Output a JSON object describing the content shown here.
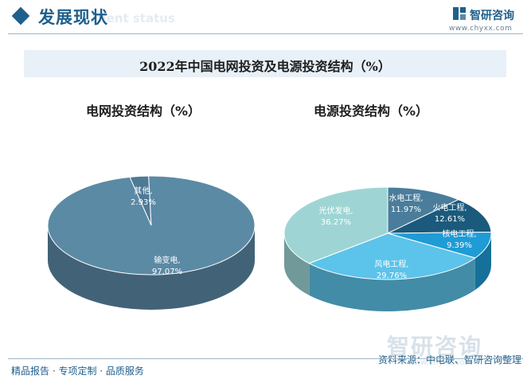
{
  "header": {
    "title": "发展现状",
    "ghost": "ment status",
    "brand": "智研咨询",
    "site": "www.chyxx.com"
  },
  "main_title": "2022年中国电网投资及电源投资结构（%）",
  "footer": {
    "left": "精品报告 · 专项定制 · 品质服务",
    "right": "资料来源：中电联、智研咨询整理",
    "watermark": "智研咨询",
    "watermark_site": "www.chyxx.com"
  },
  "colors": {
    "brand": "#1f5f8b",
    "grid_pie_top": "#5b8aa5",
    "grid_pie_side": "#3f6a84"
  },
  "chart_data": [
    {
      "type": "pie",
      "title": "电网投资结构（%）",
      "slices": [
        {
          "name": "其他",
          "value": 2.93,
          "color": "#4e7a96"
        },
        {
          "name": "输变电",
          "value": 97.07,
          "color": "#5b8aa5"
        }
      ],
      "labels": [
        {
          "name": "其他,",
          "pct": "2.93%"
        },
        {
          "name": "输变电,",
          "pct": "97.07%"
        }
      ]
    },
    {
      "type": "pie",
      "title": "电源投资结构（%）",
      "slices": [
        {
          "name": "水电工程",
          "value": 11.97,
          "color": "#4a7d9b"
        },
        {
          "name": "火电工程",
          "value": 12.61,
          "color": "#1b5a7c"
        },
        {
          "name": "核电工程",
          "value": 9.39,
          "color": "#1f9bd6"
        },
        {
          "name": "风电工程",
          "value": 29.76,
          "color": "#5cc3ea"
        },
        {
          "name": "光伏发电",
          "value": 36.27,
          "color": "#9ed5d4"
        }
      ],
      "labels": [
        {
          "name": "水电工程,",
          "pct": "11.97%"
        },
        {
          "name": "火电工程,",
          "pct": "12.61%"
        },
        {
          "name": "核电工程,",
          "pct": "9.39%"
        },
        {
          "name": "风电工程,",
          "pct": "29.76%"
        },
        {
          "name": "光伏发电,",
          "pct": "36.27%"
        }
      ]
    }
  ]
}
